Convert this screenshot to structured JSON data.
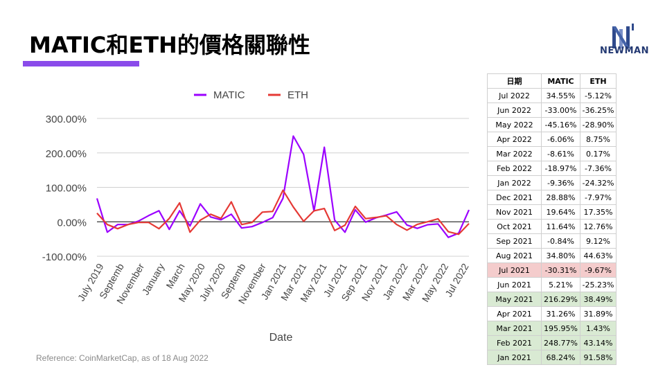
{
  "title": "MATIC和ETH的價格關聯性",
  "logo": {
    "text": "NEWMAN"
  },
  "reference": "Reference: CoinMarketCap, as of 18 Aug 2022",
  "colors": {
    "accent": "#8a4bea",
    "matic": "#9b00ff",
    "eth": "#e53935",
    "highlight_red": "#f4cccc",
    "highlight_green": "#d9ead3"
  },
  "table": {
    "headers": [
      "日期",
      "MATIC",
      "ETH"
    ],
    "rows": [
      {
        "date": "Jul 2022",
        "matic": "34.55%",
        "eth": "-5.12%",
        "hl": ""
      },
      {
        "date": "Jun 2022",
        "matic": "-33.00%",
        "eth": "-36.25%",
        "hl": ""
      },
      {
        "date": "May 2022",
        "matic": "-45.16%",
        "eth": "-28.90%",
        "hl": ""
      },
      {
        "date": "Apr 2022",
        "matic": "-6.06%",
        "eth": "8.75%",
        "hl": ""
      },
      {
        "date": "Mar 2022",
        "matic": "-8.61%",
        "eth": "0.17%",
        "hl": ""
      },
      {
        "date": "Feb 2022",
        "matic": "-18.97%",
        "eth": "-7.36%",
        "hl": ""
      },
      {
        "date": "Jan 2022",
        "matic": "-9.36%",
        "eth": "-24.32%",
        "hl": ""
      },
      {
        "date": "Dec 2021",
        "matic": "28.88%",
        "eth": "-7.97%",
        "hl": ""
      },
      {
        "date": "Nov 2021",
        "matic": "19.64%",
        "eth": "17.35%",
        "hl": ""
      },
      {
        "date": "Oct 2021",
        "matic": "11.64%",
        "eth": "12.76%",
        "hl": ""
      },
      {
        "date": "Sep 2021",
        "matic": "-0.84%",
        "eth": "9.12%",
        "hl": ""
      },
      {
        "date": "Aug 2021",
        "matic": "34.80%",
        "eth": "44.63%",
        "hl": ""
      },
      {
        "date": "Jul 2021",
        "matic": "-30.31%",
        "eth": "-9.67%",
        "hl": "red"
      },
      {
        "date": "Jun 2021",
        "matic": "5.21%",
        "eth": "-25.23%",
        "hl": ""
      },
      {
        "date": "May 2021",
        "matic": "216.29%",
        "eth": "38.49%",
        "hl": "green"
      },
      {
        "date": "Apr 2021",
        "matic": "31.26%",
        "eth": "31.89%",
        "hl": ""
      },
      {
        "date": "Mar 2021",
        "matic": "195.95%",
        "eth": "1.43%",
        "hl": "green"
      },
      {
        "date": "Feb 2021",
        "matic": "248.77%",
        "eth": "43.14%",
        "hl": "green"
      },
      {
        "date": "Jan 2021",
        "matic": "68.24%",
        "eth": "91.58%",
        "hl": "green"
      }
    ]
  },
  "chart_data": {
    "type": "line",
    "xlabel": "Date",
    "ylabel": "",
    "ylim": [
      -100,
      300
    ],
    "yticks": [
      "300.00%",
      "200.00%",
      "100.00%",
      "0.00%",
      "-100.00%"
    ],
    "ytick_values": [
      300,
      200,
      100,
      0,
      -100
    ],
    "grid": true,
    "legend": "top",
    "x_tick_labels": [
      "July 2019",
      "Septemb",
      "November",
      "January",
      "March",
      "May 2020",
      "July 2020",
      "Septemb",
      "November",
      "Jan 2021",
      "Mar 2021",
      "May 2021",
      "Jul 2021",
      "Sep 2021",
      "Nov 2021",
      "Jan 2022",
      "Mar 2022",
      "May 2022",
      "Jul 2022"
    ],
    "series": [
      {
        "name": "MATIC",
        "values": [
          68,
          -30,
          -8,
          -8,
          2,
          18,
          32,
          -22,
          32,
          -12,
          52,
          14,
          6,
          22,
          -18,
          -14,
          -2,
          12,
          68.24,
          248.77,
          195.95,
          31.26,
          216.29,
          5.21,
          -30.31,
          34.8,
          -0.84,
          11.64,
          19.64,
          28.88,
          -9.36,
          -18.97,
          -8.61,
          -6.06,
          -45.16,
          -33.0,
          34.55
        ]
      },
      {
        "name": "ETH",
        "values": [
          25,
          -8,
          -20,
          -8,
          -2,
          -2,
          -20,
          10,
          55,
          -30,
          5,
          22,
          10,
          58,
          -8,
          -2,
          28,
          30,
          91.58,
          43.14,
          1.43,
          31.89,
          38.49,
          -25.23,
          -9.67,
          44.63,
          9.12,
          12.76,
          17.35,
          -7.97,
          -24.32,
          -7.36,
          0.17,
          8.75,
          -28.9,
          -36.25,
          -5.12
        ]
      }
    ]
  }
}
